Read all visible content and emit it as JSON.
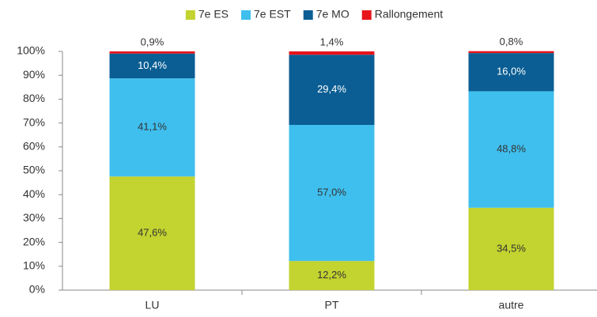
{
  "chart_data": {
    "type": "stacked_bar",
    "categories": [
      "LU",
      "PT",
      "autre"
    ],
    "series": [
      {
        "name": "7e ES",
        "color": "#c3d32f",
        "values": [
          47.6,
          12.2,
          34.5
        ],
        "value_labels": [
          "47,6%",
          "12,2%",
          "34,5%"
        ]
      },
      {
        "name": "7e EST",
        "color": "#3fbfee",
        "values": [
          41.1,
          57.0,
          48.8
        ],
        "value_labels": [
          "41,1%",
          "57,0%",
          "48,8%"
        ]
      },
      {
        "name": "7e MO",
        "color": "#0b5e94",
        "values": [
          10.4,
          29.4,
          16.0
        ],
        "value_labels": [
          "10,4%",
          "29,4%",
          "16,0%"
        ]
      },
      {
        "name": "Rallongement",
        "color": "#e8141b",
        "values": [
          0.9,
          1.4,
          0.8
        ],
        "value_labels": [
          "0,9%",
          "1,4%",
          "0,8%"
        ]
      }
    ],
    "ylim": [
      0,
      100
    ],
    "yticks": [
      {
        "value": 0,
        "label": "0%"
      },
      {
        "value": 10,
        "label": "10%"
      },
      {
        "value": 20,
        "label": "20%"
      },
      {
        "value": 30,
        "label": "30%"
      },
      {
        "value": 40,
        "label": "40%"
      },
      {
        "value": 50,
        "label": "50%"
      },
      {
        "value": 60,
        "label": "60%"
      },
      {
        "value": 70,
        "label": "70%"
      },
      {
        "value": 80,
        "label": "80%"
      },
      {
        "value": 90,
        "label": "90%"
      },
      {
        "value": 100,
        "label": "100%"
      }
    ],
    "legend": "top"
  }
}
